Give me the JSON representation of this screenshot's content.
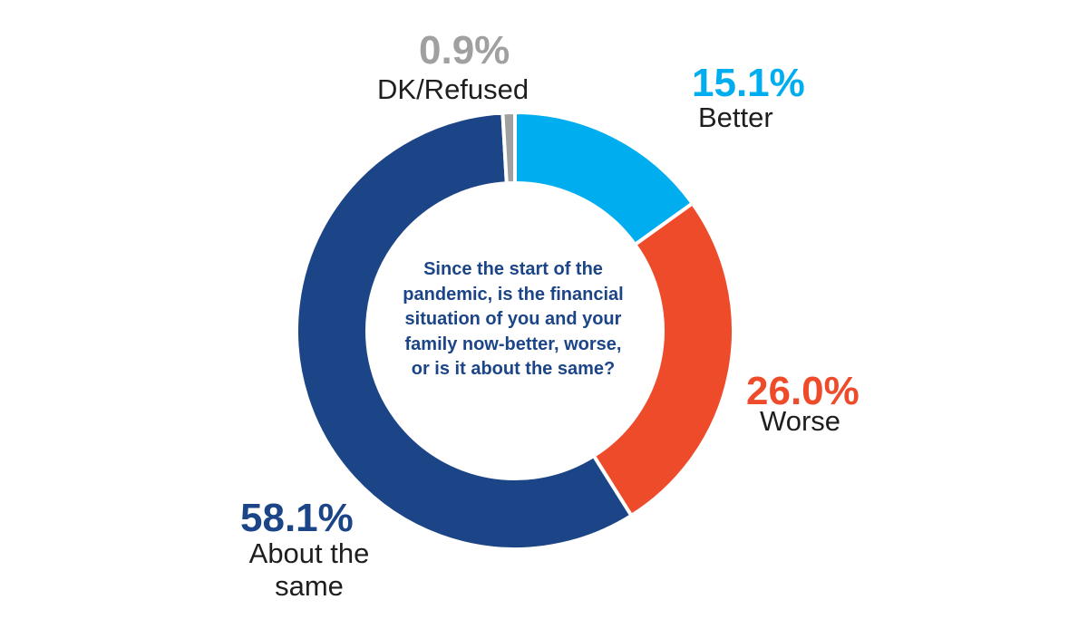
{
  "chart_data": {
    "type": "pie",
    "title": "Since the start of the pandemic, is the financial situation of you and your family now-better, worse, or is it about the same?",
    "slices": [
      {
        "label": "Better",
        "value": 15.1,
        "display": "15.1%",
        "color": "#00aeef"
      },
      {
        "label": "Worse",
        "value": 26.0,
        "display": "26.0%",
        "color": "#ee4b2b"
      },
      {
        "label": "About the same",
        "value": 58.1,
        "display": "58.1%",
        "color": "#1c4588"
      },
      {
        "label": "DK/Refused",
        "value": 0.9,
        "display": "0.9%",
        "color": "#a0a0a0"
      }
    ]
  }
}
